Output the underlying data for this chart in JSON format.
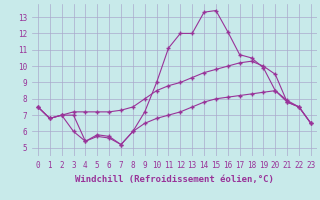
{
  "x": [
    0,
    1,
    2,
    3,
    4,
    5,
    6,
    7,
    8,
    9,
    10,
    11,
    12,
    13,
    14,
    15,
    16,
    17,
    18,
    19,
    20,
    21,
    22,
    23
  ],
  "line1": [
    7.5,
    6.8,
    7.0,
    7.2,
    7.2,
    7.2,
    7.2,
    7.3,
    7.5,
    8.0,
    8.5,
    8.8,
    9.0,
    9.3,
    9.6,
    9.8,
    10.0,
    10.2,
    10.3,
    10.0,
    9.5,
    7.8,
    7.5,
    6.5
  ],
  "line2": [
    7.5,
    6.8,
    7.0,
    7.0,
    5.4,
    5.7,
    5.6,
    5.2,
    6.0,
    7.2,
    9.0,
    11.1,
    12.0,
    12.0,
    13.3,
    13.4,
    12.1,
    10.7,
    10.5,
    9.9,
    8.5,
    7.9,
    7.5,
    6.5
  ],
  "line3": [
    7.5,
    6.8,
    7.0,
    6.0,
    5.4,
    5.8,
    5.7,
    5.2,
    6.0,
    6.5,
    6.8,
    7.0,
    7.2,
    7.5,
    7.8,
    8.0,
    8.1,
    8.2,
    8.3,
    8.4,
    8.5,
    7.8,
    7.5,
    6.5
  ],
  "color": "#993399",
  "bg_color": "#c8eaea",
  "grid_color": "#aaaacc",
  "xlabel": "Windchill (Refroidissement éolien,°C)",
  "xlim": [
    -0.5,
    23.5
  ],
  "ylim": [
    4.5,
    13.8
  ],
  "yticks": [
    5,
    6,
    7,
    8,
    9,
    10,
    11,
    12,
    13
  ],
  "xticks": [
    0,
    1,
    2,
    3,
    4,
    5,
    6,
    7,
    8,
    9,
    10,
    11,
    12,
    13,
    14,
    15,
    16,
    17,
    18,
    19,
    20,
    21,
    22,
    23
  ],
  "marker": "+",
  "markersize": 3,
  "linewidth": 0.8,
  "label_fontsize": 6.5,
  "tick_fontsize": 5.5
}
